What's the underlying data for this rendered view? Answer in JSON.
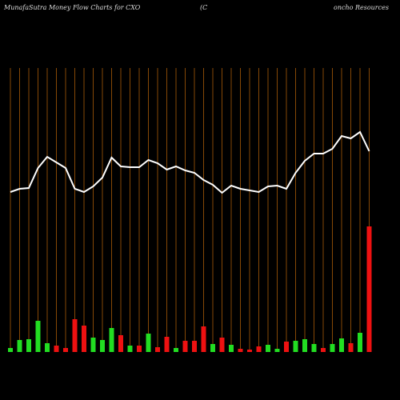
{
  "chart_data": {
    "type": "money-flow",
    "title": [
      "MunafaSutra  Money Flow  Charts for CXO",
      "(C",
      "oncho  Resources"
    ],
    "categories": [
      null,
      null,
      null,
      null,
      null,
      null,
      null,
      null,
      null,
      null,
      null,
      null,
      null,
      null,
      null,
      null,
      null,
      null,
      null,
      null,
      null,
      null,
      null,
      null,
      null,
      null,
      null,
      null,
      null,
      null,
      null,
      null,
      null,
      null,
      null,
      null,
      null,
      null,
      null,
      null
    ],
    "ylim": [
      0,
      355
    ],
    "grid_color": "#a85a08",
    "line": {
      "color": "#ffffff",
      "values": [
        200,
        204,
        205,
        230,
        244,
        237,
        230,
        204,
        200,
        207,
        218,
        243,
        232,
        231,
        231,
        240,
        236,
        228,
        232,
        227,
        224,
        215,
        209,
        199,
        208,
        204,
        202,
        200,
        207,
        208,
        204,
        224,
        239,
        248,
        248,
        254,
        270,
        267,
        275,
        251
      ]
    },
    "bars": {
      "values": [
        5,
        15,
        16,
        39,
        11,
        8,
        5,
        41,
        33,
        18,
        15,
        30,
        21,
        8,
        8,
        23,
        6,
        19,
        5,
        14,
        14,
        32,
        10,
        18,
        9,
        4,
        3,
        7,
        9,
        4,
        13,
        14,
        16,
        10,
        5,
        10,
        17,
        11,
        24,
        157
      ],
      "colors": [
        "#22dd22",
        "#22dd22",
        "#22dd22",
        "#22dd22",
        "#22dd22",
        "#ee1111",
        "#ee1111",
        "#ee1111",
        "#ee1111",
        "#22dd22",
        "#22dd22",
        "#22dd22",
        "#ee1111",
        "#22dd22",
        "#ee1111",
        "#22dd22",
        "#ee1111",
        "#ee1111",
        "#22dd22",
        "#ee1111",
        "#ee1111",
        "#ee1111",
        "#22dd22",
        "#ee1111",
        "#22dd22",
        "#ee1111",
        "#ee1111",
        "#ee1111",
        "#22dd22",
        "#22dd22",
        "#ee1111",
        "#22dd22",
        "#22dd22",
        "#22dd22",
        "#ee1111",
        "#22dd22",
        "#22dd22",
        "#ee1111",
        "#22dd22",
        "#ee1111"
      ]
    }
  }
}
